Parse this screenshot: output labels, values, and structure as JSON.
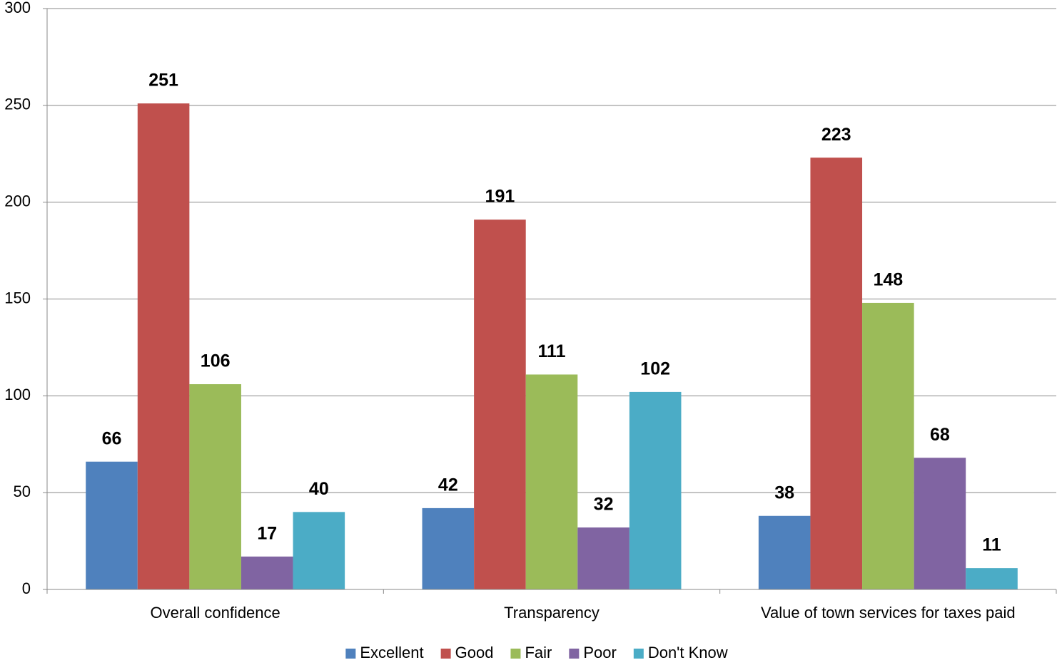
{
  "chart_data": {
    "type": "bar",
    "categories": [
      "Overall confidence",
      "Transparency",
      "Value of town services for taxes paid"
    ],
    "series": [
      {
        "name": "Excellent",
        "color": "#4f81bd",
        "values": [
          66,
          42,
          38
        ]
      },
      {
        "name": "Good",
        "color": "#c0504d",
        "values": [
          251,
          191,
          223
        ]
      },
      {
        "name": "Fair",
        "color": "#9bbb59",
        "values": [
          106,
          111,
          148
        ]
      },
      {
        "name": "Poor",
        "color": "#8064a2",
        "values": [
          17,
          32,
          68
        ]
      },
      {
        "name": "Don't Know",
        "color": "#4bacc6",
        "values": [
          40,
          102,
          11
        ]
      }
    ],
    "ylim": [
      0,
      300
    ],
    "yticks": [
      0,
      50,
      100,
      150,
      200,
      250,
      300
    ],
    "grid": true,
    "legend": "bottom"
  }
}
